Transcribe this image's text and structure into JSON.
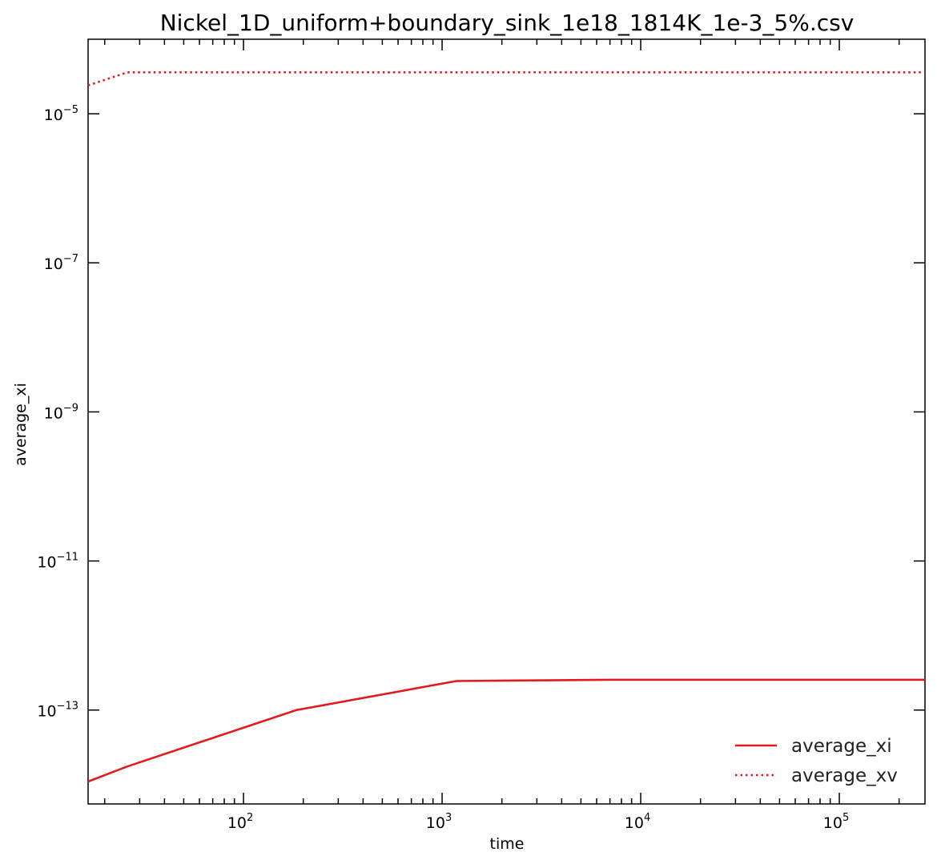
{
  "chart_data": {
    "type": "line",
    "title": "Nickel_1D_uniform+boundary_sink_1e18_1814K_1e-3_5%.csv",
    "xlabel": "time",
    "ylabel": "average_xi",
    "xscale": "log",
    "yscale": "log",
    "xlim": [
      16.5,
      270000
    ],
    "ylim": [
      5.5e-15,
      0.0001
    ],
    "x_major_ticks": [
      {
        "value": 100,
        "base": "10",
        "exp": "2"
      },
      {
        "value": 1000,
        "base": "10",
        "exp": "3"
      },
      {
        "value": 10000,
        "base": "10",
        "exp": "4"
      },
      {
        "value": 100000,
        "base": "10",
        "exp": "5"
      }
    ],
    "y_major_ticks": [
      {
        "value": 1e-13,
        "base": "10",
        "exp": "−13"
      },
      {
        "value": 1e-11,
        "base": "10",
        "exp": "−11"
      },
      {
        "value": 1e-09,
        "base": "10",
        "exp": "−9"
      },
      {
        "value": 1e-07,
        "base": "10",
        "exp": "−7"
      },
      {
        "value": 1e-05,
        "base": "10",
        "exp": "−5"
      }
    ],
    "grid": false,
    "legend_position": "lower-right",
    "series": [
      {
        "name": "average_xi",
        "style": "solid",
        "color": "#e31a1c",
        "points": [
          [
            16.5,
            1.1e-14
          ],
          [
            26,
            1.75e-14
          ],
          [
            185,
            1e-13
          ],
          [
            1180,
            2.45e-13
          ],
          [
            7000,
            2.55e-13
          ],
          [
            270000,
            2.55e-13
          ]
        ]
      },
      {
        "name": "average_xv",
        "style": "dotted",
        "color": "#e31a1c",
        "points": [
          [
            16.5,
            2.4e-05
          ],
          [
            26,
            3.6e-05
          ],
          [
            270000,
            3.6e-05
          ]
        ]
      }
    ]
  }
}
